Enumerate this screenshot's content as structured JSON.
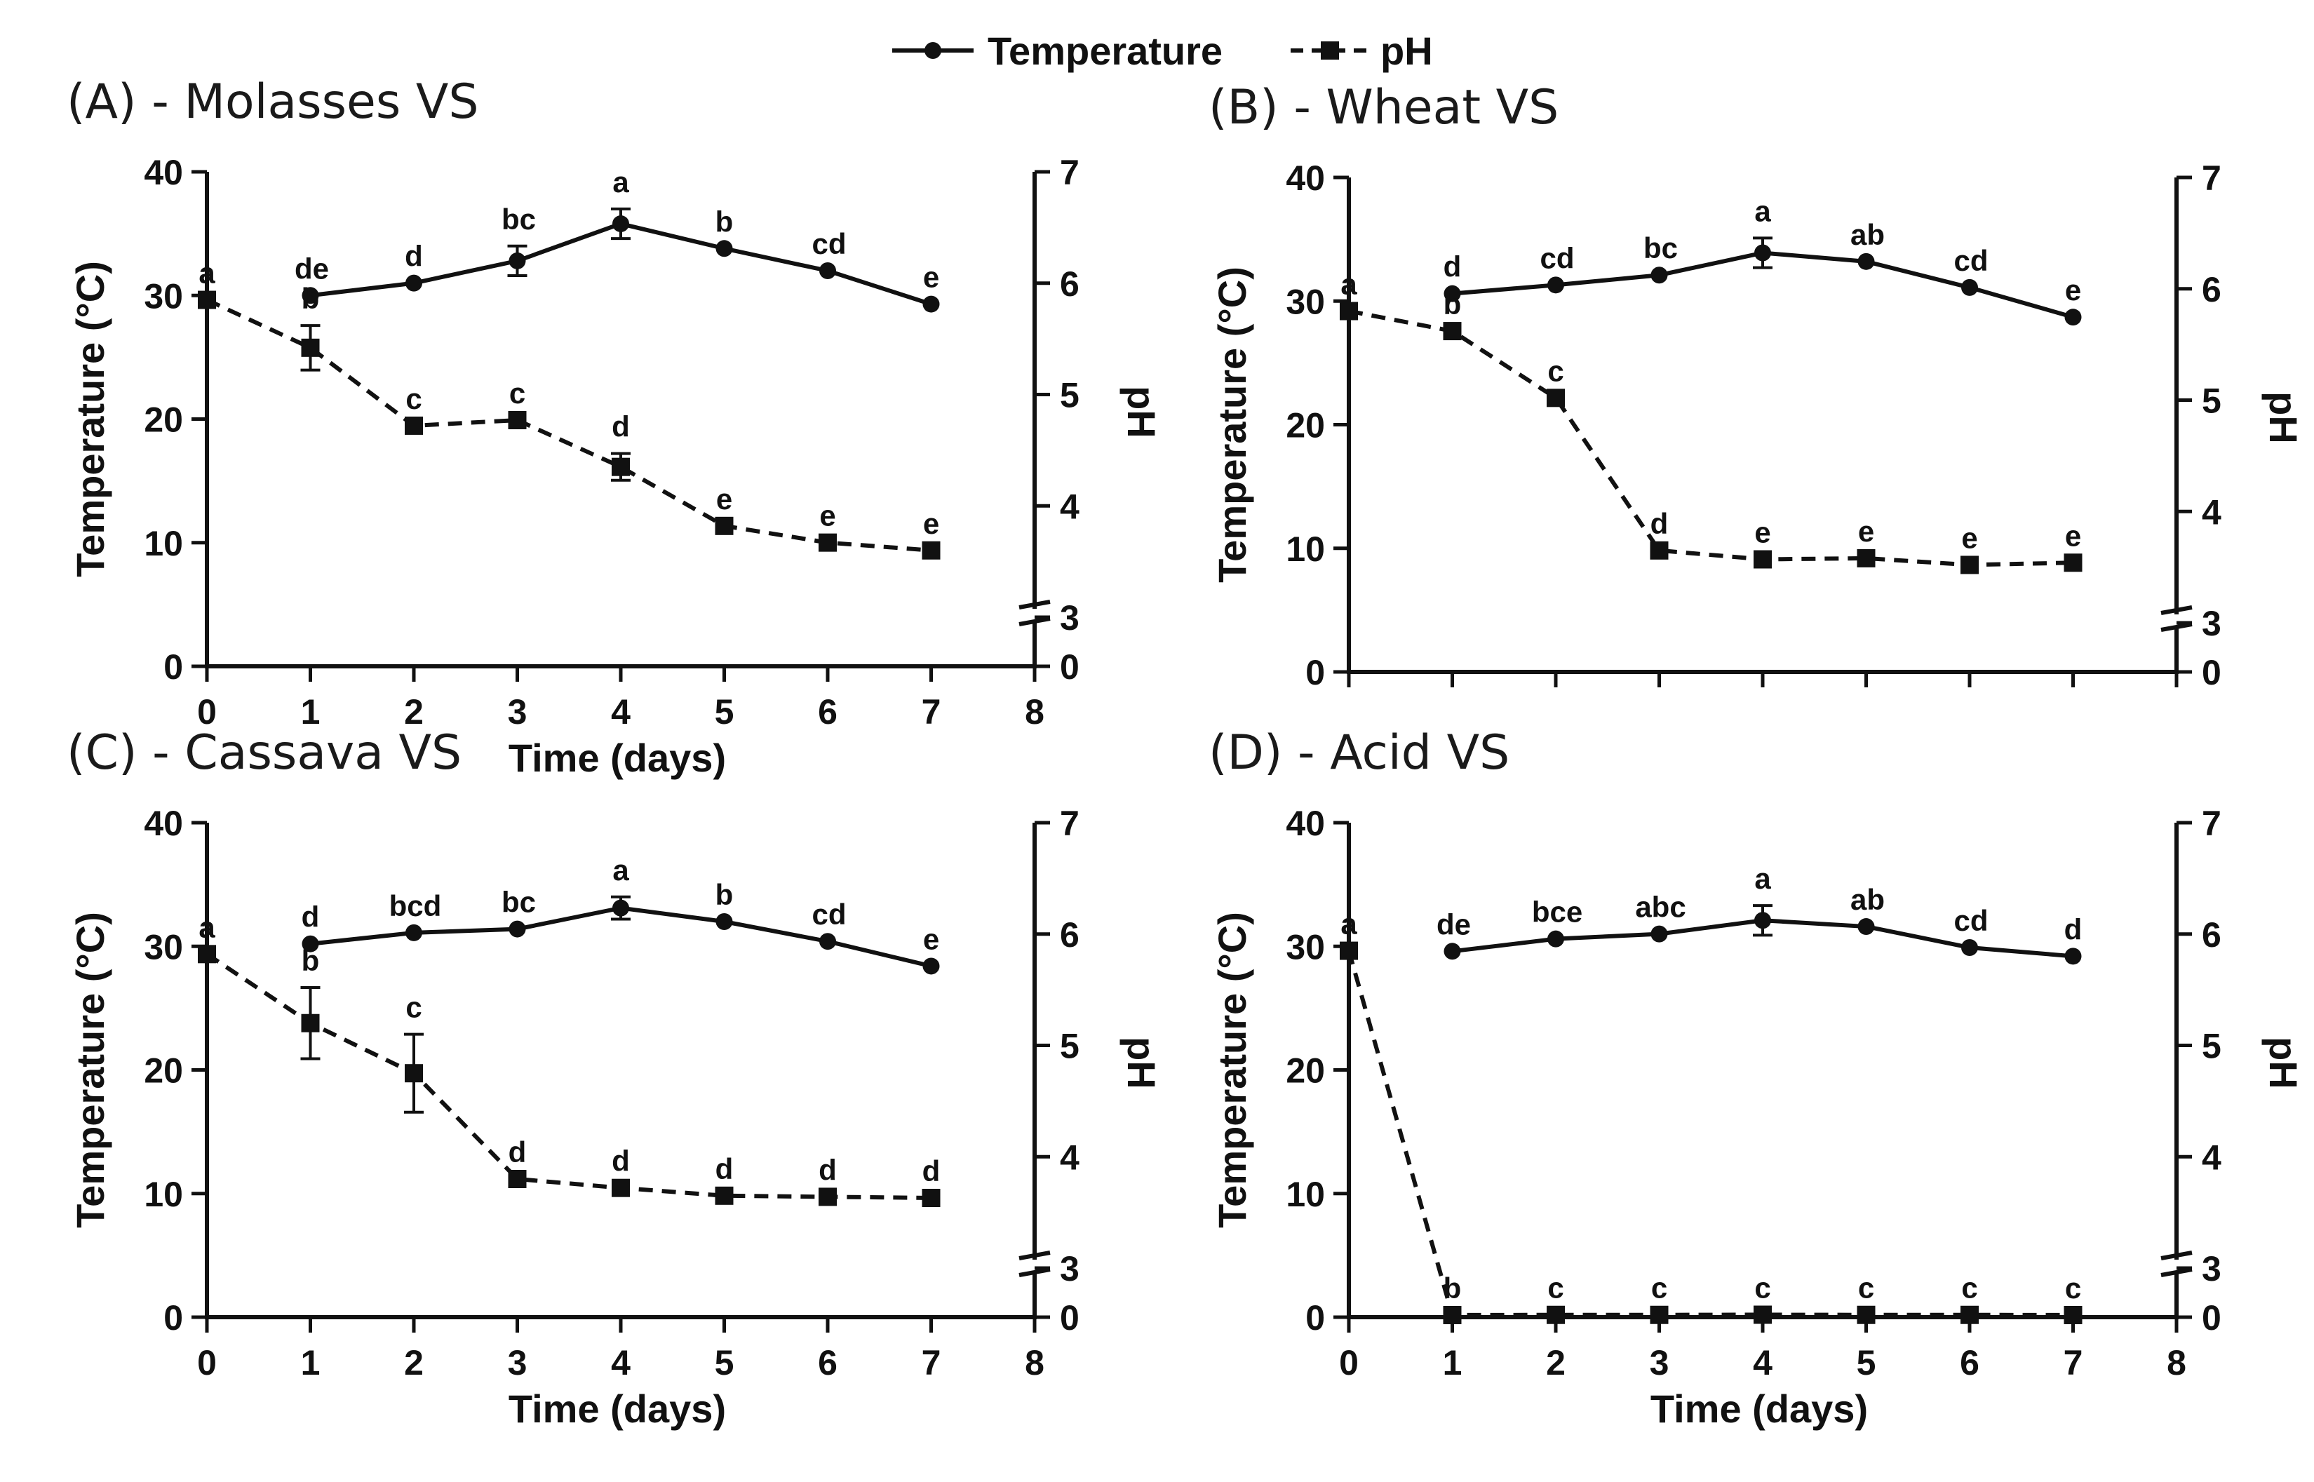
{
  "legend": {
    "temperature_label": "Temperature",
    "ph_label": "pH"
  },
  "chart_data": [
    {
      "type": "line",
      "title": "(A) - Molasses VS",
      "xlabel": "Time (days)",
      "ylabel_left": "Temperature (°C)",
      "ylabel_right": "pH",
      "xlim": [
        0,
        8
      ],
      "xticks": [
        "0",
        "1",
        "2",
        "3",
        "4",
        "5",
        "6",
        "7",
        "8"
      ],
      "ylim_left": [
        0,
        40
      ],
      "yticks_left": [
        "0",
        "10",
        "20",
        "30",
        "40"
      ],
      "yticks_right": [
        "0",
        "3",
        "4",
        "5",
        "6",
        "7"
      ],
      "series": [
        {
          "name": "Temperature",
          "style": "solid-circle",
          "axis": "left",
          "x": [
            1,
            2,
            3,
            4,
            5,
            6,
            7
          ],
          "values": [
            30.0,
            31.0,
            32.8,
            35.8,
            33.8,
            32.0,
            29.3
          ],
          "errors": [
            0,
            0,
            1.2,
            1.2,
            0,
            0,
            0
          ],
          "labels": [
            "de",
            "d",
            "bc",
            "a",
            "b",
            "cd",
            "e"
          ]
        },
        {
          "name": "pH",
          "style": "dashed-square",
          "axis": "right",
          "x": [
            0,
            1,
            2,
            3,
            4,
            5,
            6,
            7
          ],
          "values": [
            5.85,
            5.42,
            4.72,
            4.77,
            4.35,
            3.82,
            3.67,
            3.6
          ],
          "errors": [
            0,
            0.2,
            0,
            0,
            0.12,
            0,
            0,
            0
          ],
          "labels": [
            "a",
            "b",
            "c",
            "c",
            "d",
            "e",
            "e",
            "e"
          ]
        }
      ]
    },
    {
      "type": "line",
      "title": "(B) - Wheat VS",
      "xlabel": "",
      "ylabel_left": "Temperature (°C)",
      "ylabel_right": "pH",
      "xlim": [
        0,
        8
      ],
      "xticks": [],
      "ylim_left": [
        0,
        40
      ],
      "yticks_left": [
        "0",
        "10",
        "20",
        "30",
        "40"
      ],
      "yticks_right": [
        "0",
        "3",
        "4",
        "5",
        "6",
        "7"
      ],
      "series": [
        {
          "name": "Temperature",
          "style": "solid-circle",
          "axis": "left",
          "x": [
            1,
            2,
            3,
            4,
            5,
            6,
            7
          ],
          "values": [
            30.6,
            31.3,
            32.1,
            33.9,
            33.2,
            31.1,
            28.7
          ],
          "errors": [
            0,
            0,
            0,
            1.2,
            0,
            0,
            0
          ],
          "labels": [
            "d",
            "cd",
            "bc",
            "a",
            "ab",
            "cd",
            "e"
          ]
        },
        {
          "name": "pH",
          "style": "dashed-square",
          "axis": "right",
          "x": [
            0,
            1,
            2,
            3,
            4,
            5,
            6,
            7
          ],
          "values": [
            5.8,
            5.62,
            5.02,
            3.65,
            3.57,
            3.58,
            3.52,
            3.54
          ],
          "errors": [
            0,
            0,
            0,
            0,
            0,
            0,
            0,
            0
          ],
          "labels": [
            "a",
            "b",
            "c",
            "d",
            "e",
            "e",
            "e",
            "e"
          ]
        }
      ]
    },
    {
      "type": "line",
      "title": "(C) - Cassava VS",
      "xlabel": "Time (days)",
      "ylabel_left": "Temperature (°C)",
      "ylabel_right": "pH",
      "xlim": [
        0,
        8
      ],
      "xticks": [
        "0",
        "1",
        "2",
        "3",
        "4",
        "5",
        "6",
        "7",
        "8"
      ],
      "ylim_left": [
        0,
        40
      ],
      "yticks_left": [
        "0",
        "10",
        "20",
        "30",
        "40"
      ],
      "yticks_right": [
        "0",
        "3",
        "4",
        "5",
        "6",
        "7"
      ],
      "series": [
        {
          "name": "Temperature",
          "style": "solid-circle",
          "axis": "left",
          "x": [
            1,
            2,
            3,
            4,
            5,
            6,
            7
          ],
          "values": [
            30.2,
            31.1,
            31.4,
            33.1,
            32.0,
            30.4,
            28.4
          ],
          "errors": [
            0,
            0,
            0,
            0.9,
            0,
            0,
            0
          ],
          "labels": [
            "d",
            "bcd",
            "bc",
            "a",
            "b",
            "cd",
            "e"
          ]
        },
        {
          "name": "pH",
          "style": "dashed-square",
          "axis": "right",
          "x": [
            0,
            1,
            2,
            3,
            4,
            5,
            6,
            7
          ],
          "values": [
            5.82,
            5.2,
            4.75,
            3.8,
            3.72,
            3.65,
            3.64,
            3.63
          ],
          "errors": [
            0,
            0.32,
            0.35,
            0,
            0,
            0,
            0,
            0
          ],
          "labels": [
            "a",
            "b",
            "c",
            "d",
            "d",
            "d",
            "d",
            "d"
          ]
        }
      ]
    },
    {
      "type": "line",
      "title": "(D) - Acid VS",
      "xlabel": "Time (days)",
      "ylabel_left": "Temperature (°C)",
      "ylabel_right": "pH",
      "xlim": [
        0,
        8
      ],
      "xticks": [
        "0",
        "1",
        "2",
        "3",
        "4",
        "5",
        "6",
        "7",
        "8"
      ],
      "ylim_left": [
        0,
        40
      ],
      "yticks_left": [
        "0",
        "10",
        "20",
        "30",
        "40"
      ],
      "yticks_right": [
        "0",
        "3",
        "4",
        "5",
        "6",
        "7"
      ],
      "series": [
        {
          "name": "Temperature",
          "style": "solid-circle",
          "axis": "left",
          "x": [
            1,
            2,
            3,
            4,
            5,
            6,
            7
          ],
          "values": [
            29.6,
            30.6,
            31.0,
            32.1,
            31.6,
            29.9,
            29.2
          ],
          "errors": [
            0,
            0,
            0,
            1.2,
            0,
            0,
            0
          ],
          "labels": [
            "de",
            "bce",
            "abc",
            "a",
            "ab",
            "cd",
            "d"
          ]
        },
        {
          "name": "pH",
          "style": "dashed-square",
          "axis": "right",
          "x": [
            0,
            1,
            2,
            3,
            4,
            5,
            6,
            7
          ],
          "values": [
            5.85,
            0.13,
            0.14,
            0.14,
            0.15,
            0.14,
            0.14,
            0.13
          ],
          "errors": [
            0,
            0,
            0,
            0,
            0,
            0,
            0,
            0
          ],
          "labels": [
            "a",
            "b",
            "c",
            "c",
            "c",
            "c",
            "c",
            "c"
          ]
        }
      ]
    }
  ]
}
